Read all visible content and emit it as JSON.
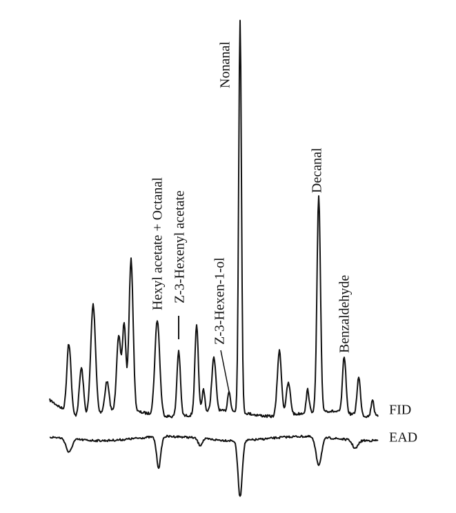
{
  "peaks": [
    {
      "label": "Hexyl acetate + Octanal"
    },
    {
      "label": "Z-3-Hexenyl acetate"
    },
    {
      "label": "Z-3-Hexen-1-ol"
    },
    {
      "label": "Nonanal"
    },
    {
      "label": "Decanal"
    },
    {
      "label": "Benzaldehyde"
    }
  ],
  "traces": [
    {
      "label": "FID"
    },
    {
      "label": "EAD"
    }
  ]
}
